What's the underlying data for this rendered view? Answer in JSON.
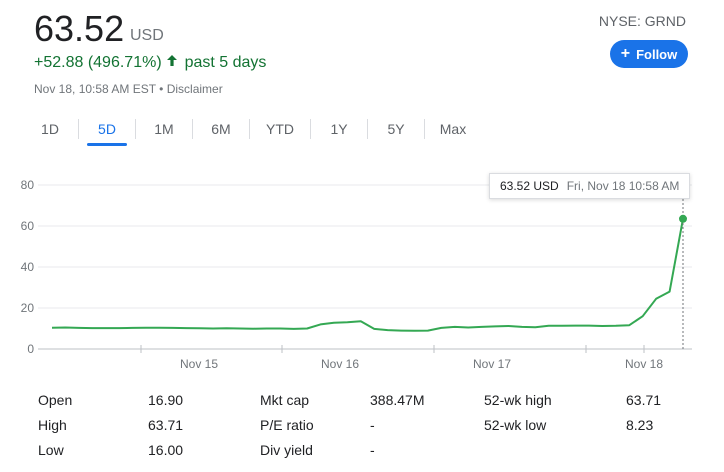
{
  "quote": {
    "price": "63.52",
    "currency": "USD",
    "change": "+52.88 (496.71%)",
    "change_period": "past 5 days",
    "timestamp": "Nov 18, 10:58 AM EST • Disclaimer",
    "ticker": "NYSE: GRND",
    "follow_label": "Follow",
    "positive_color": "#137333",
    "accent_color": "#1a73e8"
  },
  "ranges": [
    {
      "label": "1D",
      "active": false
    },
    {
      "label": "5D",
      "active": true
    },
    {
      "label": "1M",
      "active": false
    },
    {
      "label": "6M",
      "active": false
    },
    {
      "label": "YTD",
      "active": false
    },
    {
      "label": "1Y",
      "active": false
    },
    {
      "label": "5Y",
      "active": false
    },
    {
      "label": "Max",
      "active": false
    }
  ],
  "tooltip": {
    "value": "63.52 USD",
    "date": "Fri, Nov 18 10:58 AM"
  },
  "chart_data": {
    "type": "line",
    "ylim": [
      0,
      80
    ],
    "y_ticks": [
      "80",
      "60",
      "40",
      "20",
      "0"
    ],
    "x_ticks": [
      "Nov 15",
      "Nov 16",
      "Nov 17",
      "Nov 18"
    ],
    "line_color": "#34a853",
    "series": [
      {
        "values": [
          10.4,
          10.5,
          10.3,
          10.2,
          10.2,
          10.2,
          10.3,
          10.4,
          10.4,
          10.3,
          10.2,
          10.1,
          10.0,
          10.1,
          10.0,
          9.9,
          10.0,
          10.0,
          9.8,
          10.0,
          12.0,
          12.8,
          13.0,
          13.5,
          9.8,
          9.2,
          9.0,
          8.9,
          9.0,
          10.3,
          10.8,
          10.5,
          10.8,
          11.0,
          11.2,
          10.8,
          10.6,
          11.3,
          11.3,
          11.4,
          11.4,
          11.2,
          11.3,
          11.6,
          16.0,
          24.5,
          28.0,
          63.52
        ]
      }
    ]
  },
  "stats": {
    "col1": [
      {
        "label": "Open",
        "value": "16.90"
      },
      {
        "label": "High",
        "value": "63.71"
      },
      {
        "label": "Low",
        "value": "16.00"
      }
    ],
    "col2": [
      {
        "label": "Mkt cap",
        "value": "388.47M"
      },
      {
        "label": "P/E ratio",
        "value": "-"
      },
      {
        "label": "Div yield",
        "value": "-"
      }
    ],
    "col3": [
      {
        "label": "52-wk high",
        "value": "63.71"
      },
      {
        "label": "52-wk low",
        "value": "8.23"
      }
    ]
  }
}
